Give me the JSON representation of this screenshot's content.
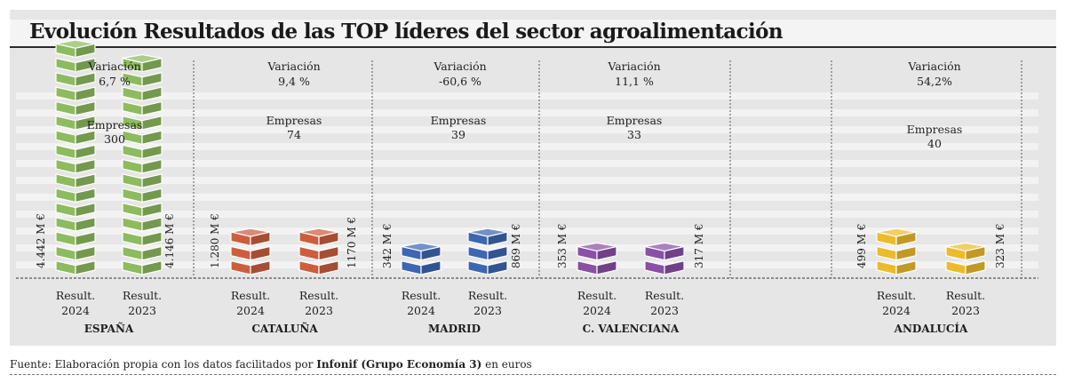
{
  "title": "Evolución Resultados de las TOP líderes del sector agroalimentación",
  "source": {
    "prefix": "Fuente: Elaboración propia con los datos facilitados por ",
    "bold": "Infonif (Grupo Economía 3)",
    "suffix": " en euros"
  },
  "chart_data": {
    "type": "bar",
    "title": "Evolución Resultados de las TOP líderes del sector agroalimentación",
    "unit": "M €",
    "categories": [
      "ESPAÑA",
      "CATALUÑA",
      "MADRID",
      "C. VALENCIANA",
      "ANDALUCÍA"
    ],
    "series": [
      {
        "name": "Result. 2024",
        "values": [
          4442,
          1280,
          342,
          353,
          499
        ]
      },
      {
        "name": "Result. 2023",
        "values": [
          4146,
          1170,
          869,
          317,
          323
        ]
      }
    ],
    "value_labels": {
      "Result. 2024": [
        "4.442 M €",
        "1.280 M €",
        "342 M €",
        "353 M €",
        "499 M €"
      ],
      "Result. 2023": [
        "4.146 M €",
        "1170 M €",
        "869 M €",
        "317 M €",
        "323 M €"
      ]
    },
    "bar_labels": [
      [
        "Result.",
        "2024"
      ],
      [
        "Result.",
        "2023"
      ]
    ],
    "variacion_label": "Variación",
    "variacion": [
      "6,7 %",
      "9,4 %",
      "-60,6 %",
      "11,1 %",
      "54,2%"
    ],
    "empresas_label": "Empresas",
    "empresas": [
      "300",
      "74",
      "39",
      "33",
      "40"
    ],
    "colors": [
      "#8dbb5e",
      "#cc5e3e",
      "#3d67b3",
      "#8a4fa6",
      "#ecbb2c"
    ],
    "cube_counts": {
      "Result. 2024": [
        16,
        3,
        2,
        2,
        3
      ],
      "Result. 2023": [
        15,
        3,
        3,
        2,
        2
      ]
    }
  }
}
